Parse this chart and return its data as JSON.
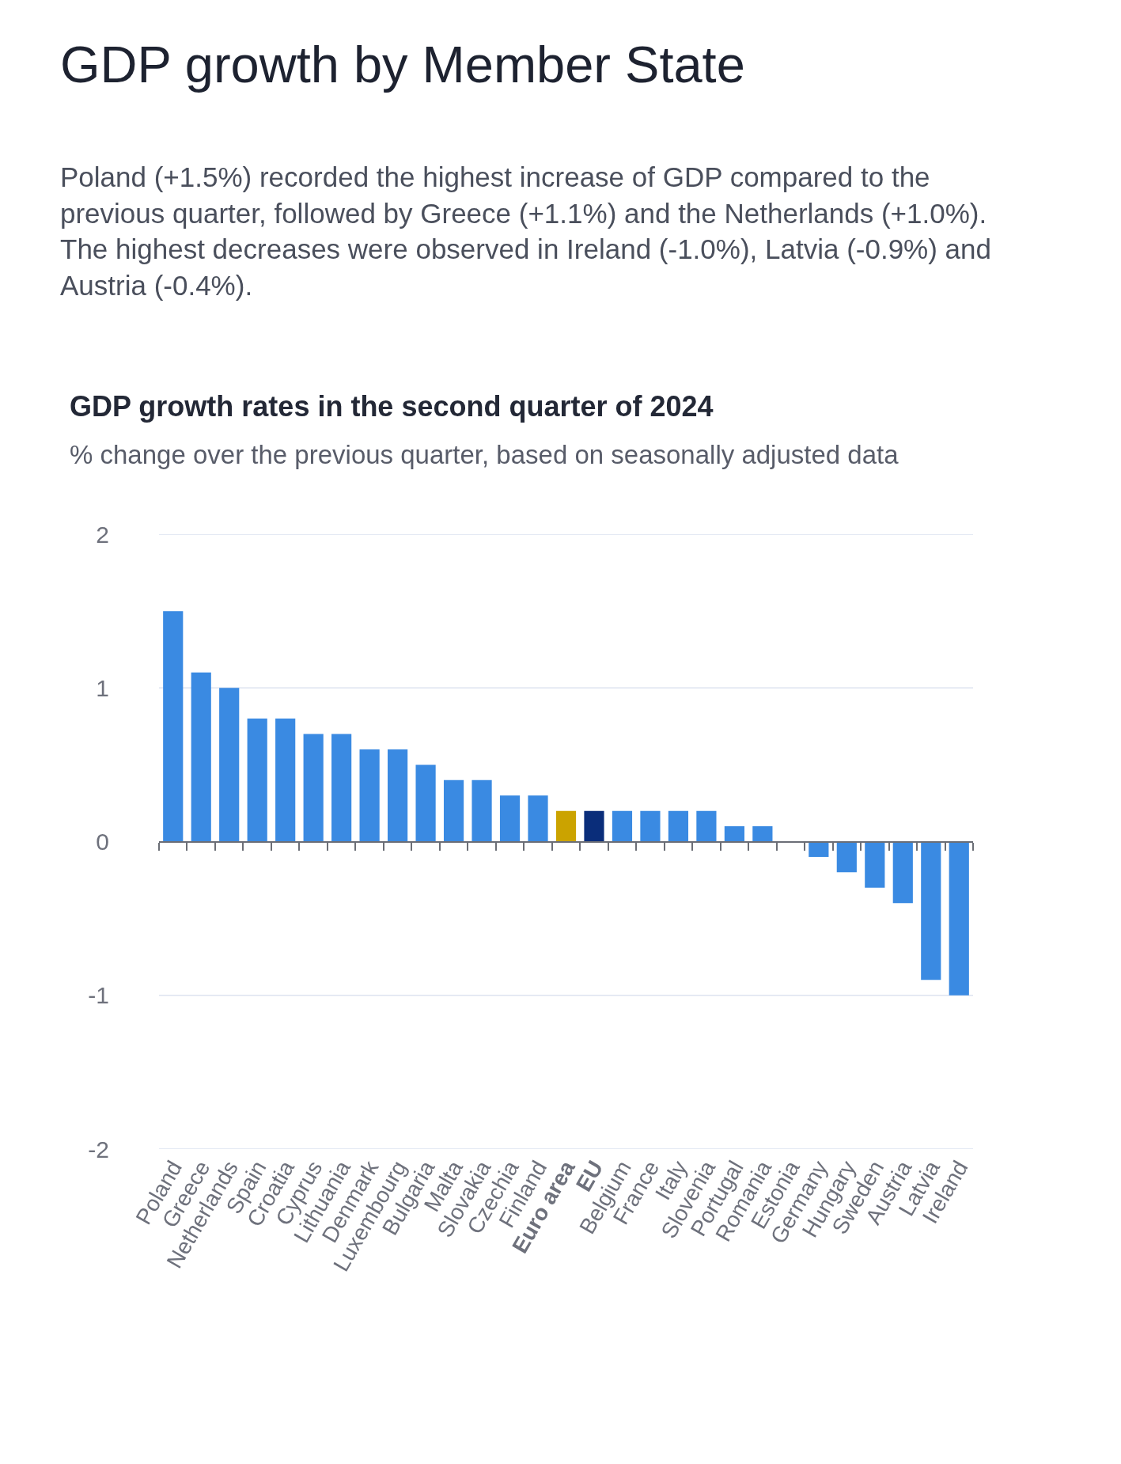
{
  "chart_data": {
    "type": "bar",
    "title": "GDP growth rates in the second quarter of 2024",
    "subtitle": "% change over the previous quarter, based on seasonally adjusted data",
    "annotations": [
      "GDP growth by Member State",
      "Poland (+1.5%) recorded the highest increase of GDP compared to the previous quarter, followed by Greece (+1.1%) and the Netherlands (+1.0%). The highest decreases were observed in Ireland (-1.0%), Latvia (-0.9%) and Austria (-0.4%)."
    ],
    "categories": [
      "Poland",
      "Greece",
      "Netherlands",
      "Spain",
      "Croatia",
      "Cyprus",
      "Lithuania",
      "Denmark",
      "Luxembourg",
      "Bulgaria",
      "Malta",
      "Slovakia",
      "Czechia",
      "Finland",
      "Euro area",
      "EU",
      "Belgium",
      "France",
      "Italy",
      "Slovenia",
      "Portugal",
      "Romania",
      "Estonia",
      "Germany",
      "Hungary",
      "Sweden",
      "Austria",
      "Latvia",
      "Ireland"
    ],
    "values": [
      1.5,
      1.1,
      1.0,
      0.8,
      0.8,
      0.7,
      0.7,
      0.6,
      0.6,
      0.5,
      0.4,
      0.4,
      0.3,
      0.3,
      0.2,
      0.2,
      0.2,
      0.2,
      0.2,
      0.2,
      0.1,
      0.1,
      0.0,
      -0.1,
      -0.2,
      -0.3,
      -0.4,
      -0.9,
      -1.0
    ],
    "colors": [
      "#3a8ae2",
      "#3a8ae2",
      "#3a8ae2",
      "#3a8ae2",
      "#3a8ae2",
      "#3a8ae2",
      "#3a8ae2",
      "#3a8ae2",
      "#3a8ae2",
      "#3a8ae2",
      "#3a8ae2",
      "#3a8ae2",
      "#3a8ae2",
      "#3a8ae2",
      "#cba300",
      "#0a2d7a",
      "#3a8ae2",
      "#3a8ae2",
      "#3a8ae2",
      "#3a8ae2",
      "#3a8ae2",
      "#3a8ae2",
      "#3a8ae2",
      "#3a8ae2",
      "#3a8ae2",
      "#3a8ae2",
      "#3a8ae2",
      "#3a8ae2",
      "#3a8ae2"
    ],
    "ylim": [
      -2,
      2
    ],
    "yticks": [
      -2,
      -1,
      0,
      1,
      2
    ],
    "grid": "y"
  }
}
